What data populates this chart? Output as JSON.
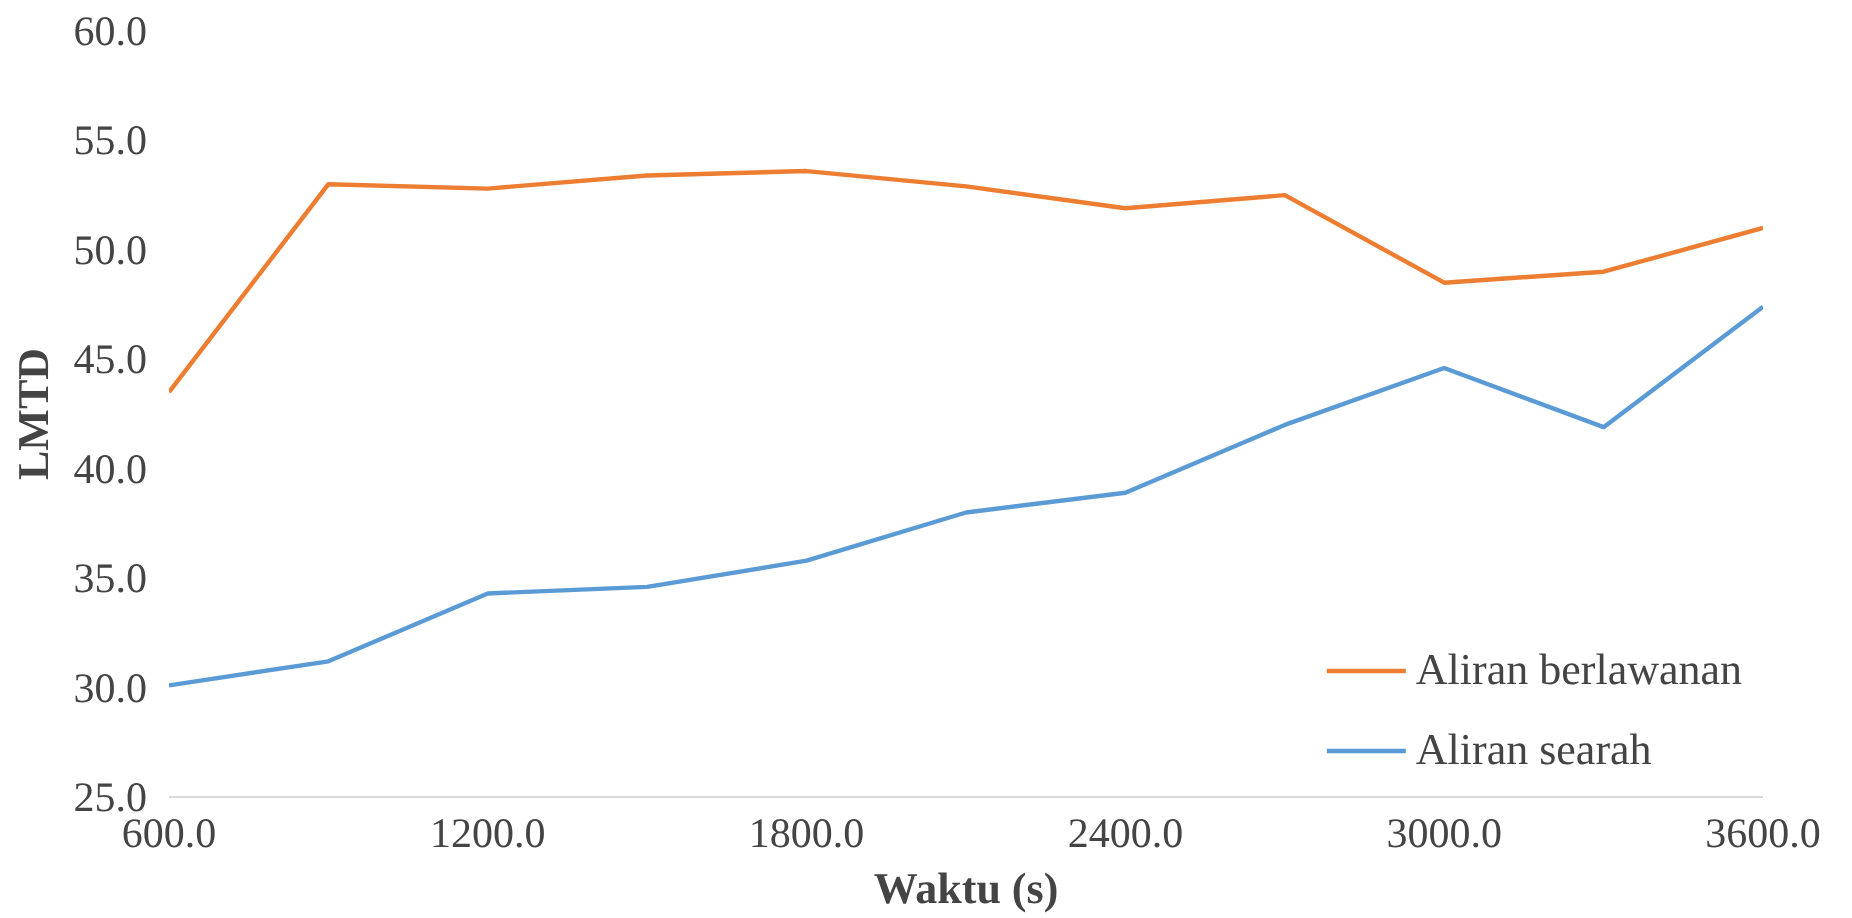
{
  "chart_data": {
    "type": "line",
    "xlabel": "Waktu (s)",
    "ylabel": "LMTD",
    "x": [
      600,
      900,
      1200,
      1500,
      1800,
      2100,
      2400,
      2700,
      3000,
      3300,
      3600
    ],
    "series": [
      {
        "name": "Aliran berlawanan",
        "color": "#ed7d31",
        "values": [
          43.5,
          53.0,
          52.8,
          53.4,
          53.6,
          52.9,
          51.9,
          52.5,
          48.5,
          49.0,
          51.0
        ]
      },
      {
        "name": "Aliran searah",
        "color": "#5b9bd5",
        "values": [
          30.1,
          31.2,
          34.3,
          34.6,
          35.8,
          38.0,
          38.9,
          42.0,
          44.6,
          41.9,
          47.4
        ]
      }
    ],
    "xlim": [
      600,
      3600
    ],
    "ylim": [
      25,
      60
    ],
    "xticks": [
      {
        "value": 600,
        "label": "600.0"
      },
      {
        "value": 1200,
        "label": "1200.0"
      },
      {
        "value": 1800,
        "label": "1800.0"
      },
      {
        "value": 2400,
        "label": "2400.0"
      },
      {
        "value": 3000,
        "label": "3000.0"
      },
      {
        "value": 3600,
        "label": "3600.0"
      }
    ],
    "yticks": [
      {
        "value": 25,
        "label": "25.0"
      },
      {
        "value": 30,
        "label": "30.0"
      },
      {
        "value": 35,
        "label": "35.0"
      },
      {
        "value": 40,
        "label": "40.0"
      },
      {
        "value": 45,
        "label": "45.0"
      },
      {
        "value": 50,
        "label": "50.0"
      },
      {
        "value": 55,
        "label": "55.0"
      },
      {
        "value": 60,
        "label": "60.0"
      }
    ],
    "grid": false,
    "legend": "bottom right",
    "marker": "none",
    "line_style": "solid"
  }
}
